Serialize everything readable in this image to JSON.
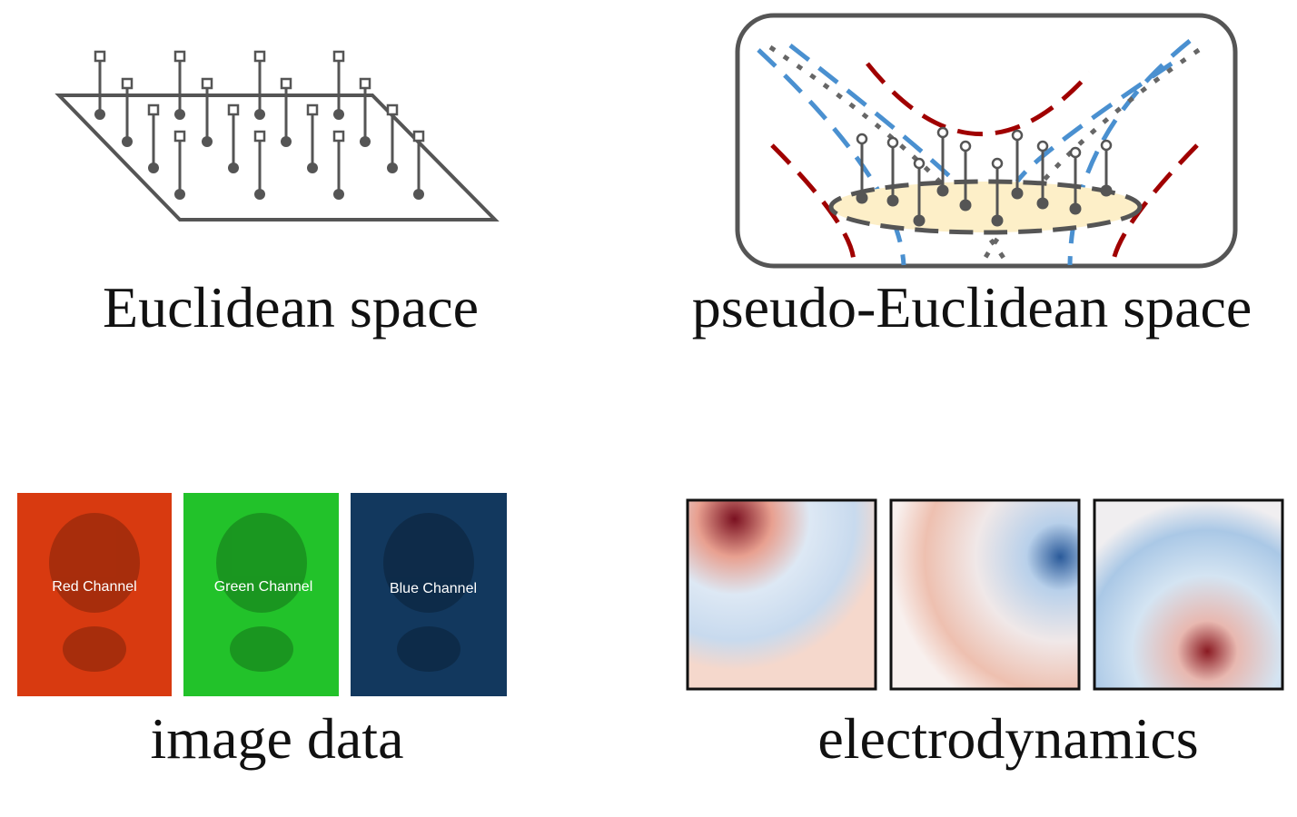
{
  "panels": [
    {
      "caption": "Euclidean space"
    },
    {
      "caption": "pseudo-Euclidean space"
    },
    {
      "caption": "image data",
      "channels": [
        "Red Channel",
        "Green Channel",
        "Blue Channel"
      ]
    },
    {
      "caption": "electrodynamics"
    }
  ]
}
